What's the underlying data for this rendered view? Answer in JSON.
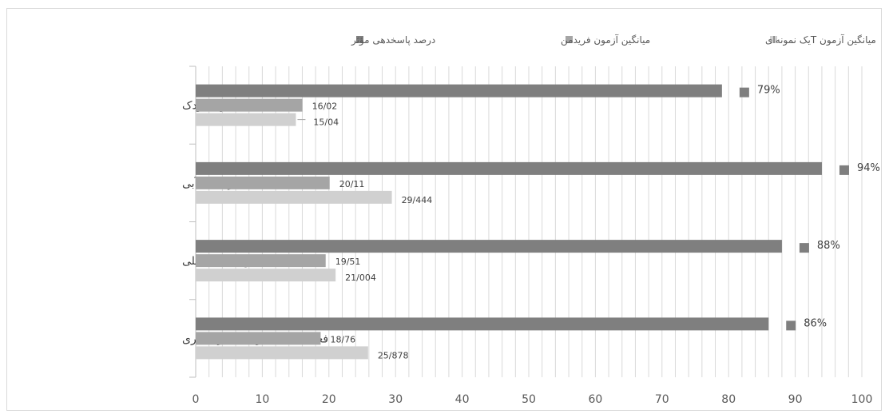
{
  "chart_data": {
    "type": "bar",
    "orientation": "horizontal",
    "categories": [
      "فضای بازی کودک",
      "بازی‌های آبی",
      "بازی‌های ساحلی",
      "فعالیت های تفریحی- گردشگری"
    ],
    "series": [
      {
        "name": "درصد پاسخدهی مؤثر",
        "color": "#7f7f7f",
        "values": [
          79,
          94,
          88,
          86
        ],
        "labels": [
          "79%",
          "94%",
          "88%",
          "86%"
        ]
      },
      {
        "name": "میانگین آزمون فریدمن",
        "color": "#a5a5a5",
        "values": [
          16.02,
          20.11,
          19.51,
          18.76
        ],
        "labels": [
          "16/02",
          "20/11",
          "19/51",
          "18/76"
        ]
      },
      {
        "name": "میانگین آزمون  Tیک نمونه‌ای",
        "color": "#d0d0d0",
        "values": [
          15.04,
          29.444,
          21.004,
          25.878
        ],
        "labels": [
          "15/04",
          "29/444",
          "21/004",
          "25/878"
        ]
      }
    ],
    "xlim": [
      0,
      100
    ],
    "xticks": [
      "0",
      "10",
      "20",
      "30",
      "40",
      "50",
      "60",
      "70",
      "80",
      "90",
      "100"
    ],
    "grid": true,
    "legend_position": "top"
  }
}
